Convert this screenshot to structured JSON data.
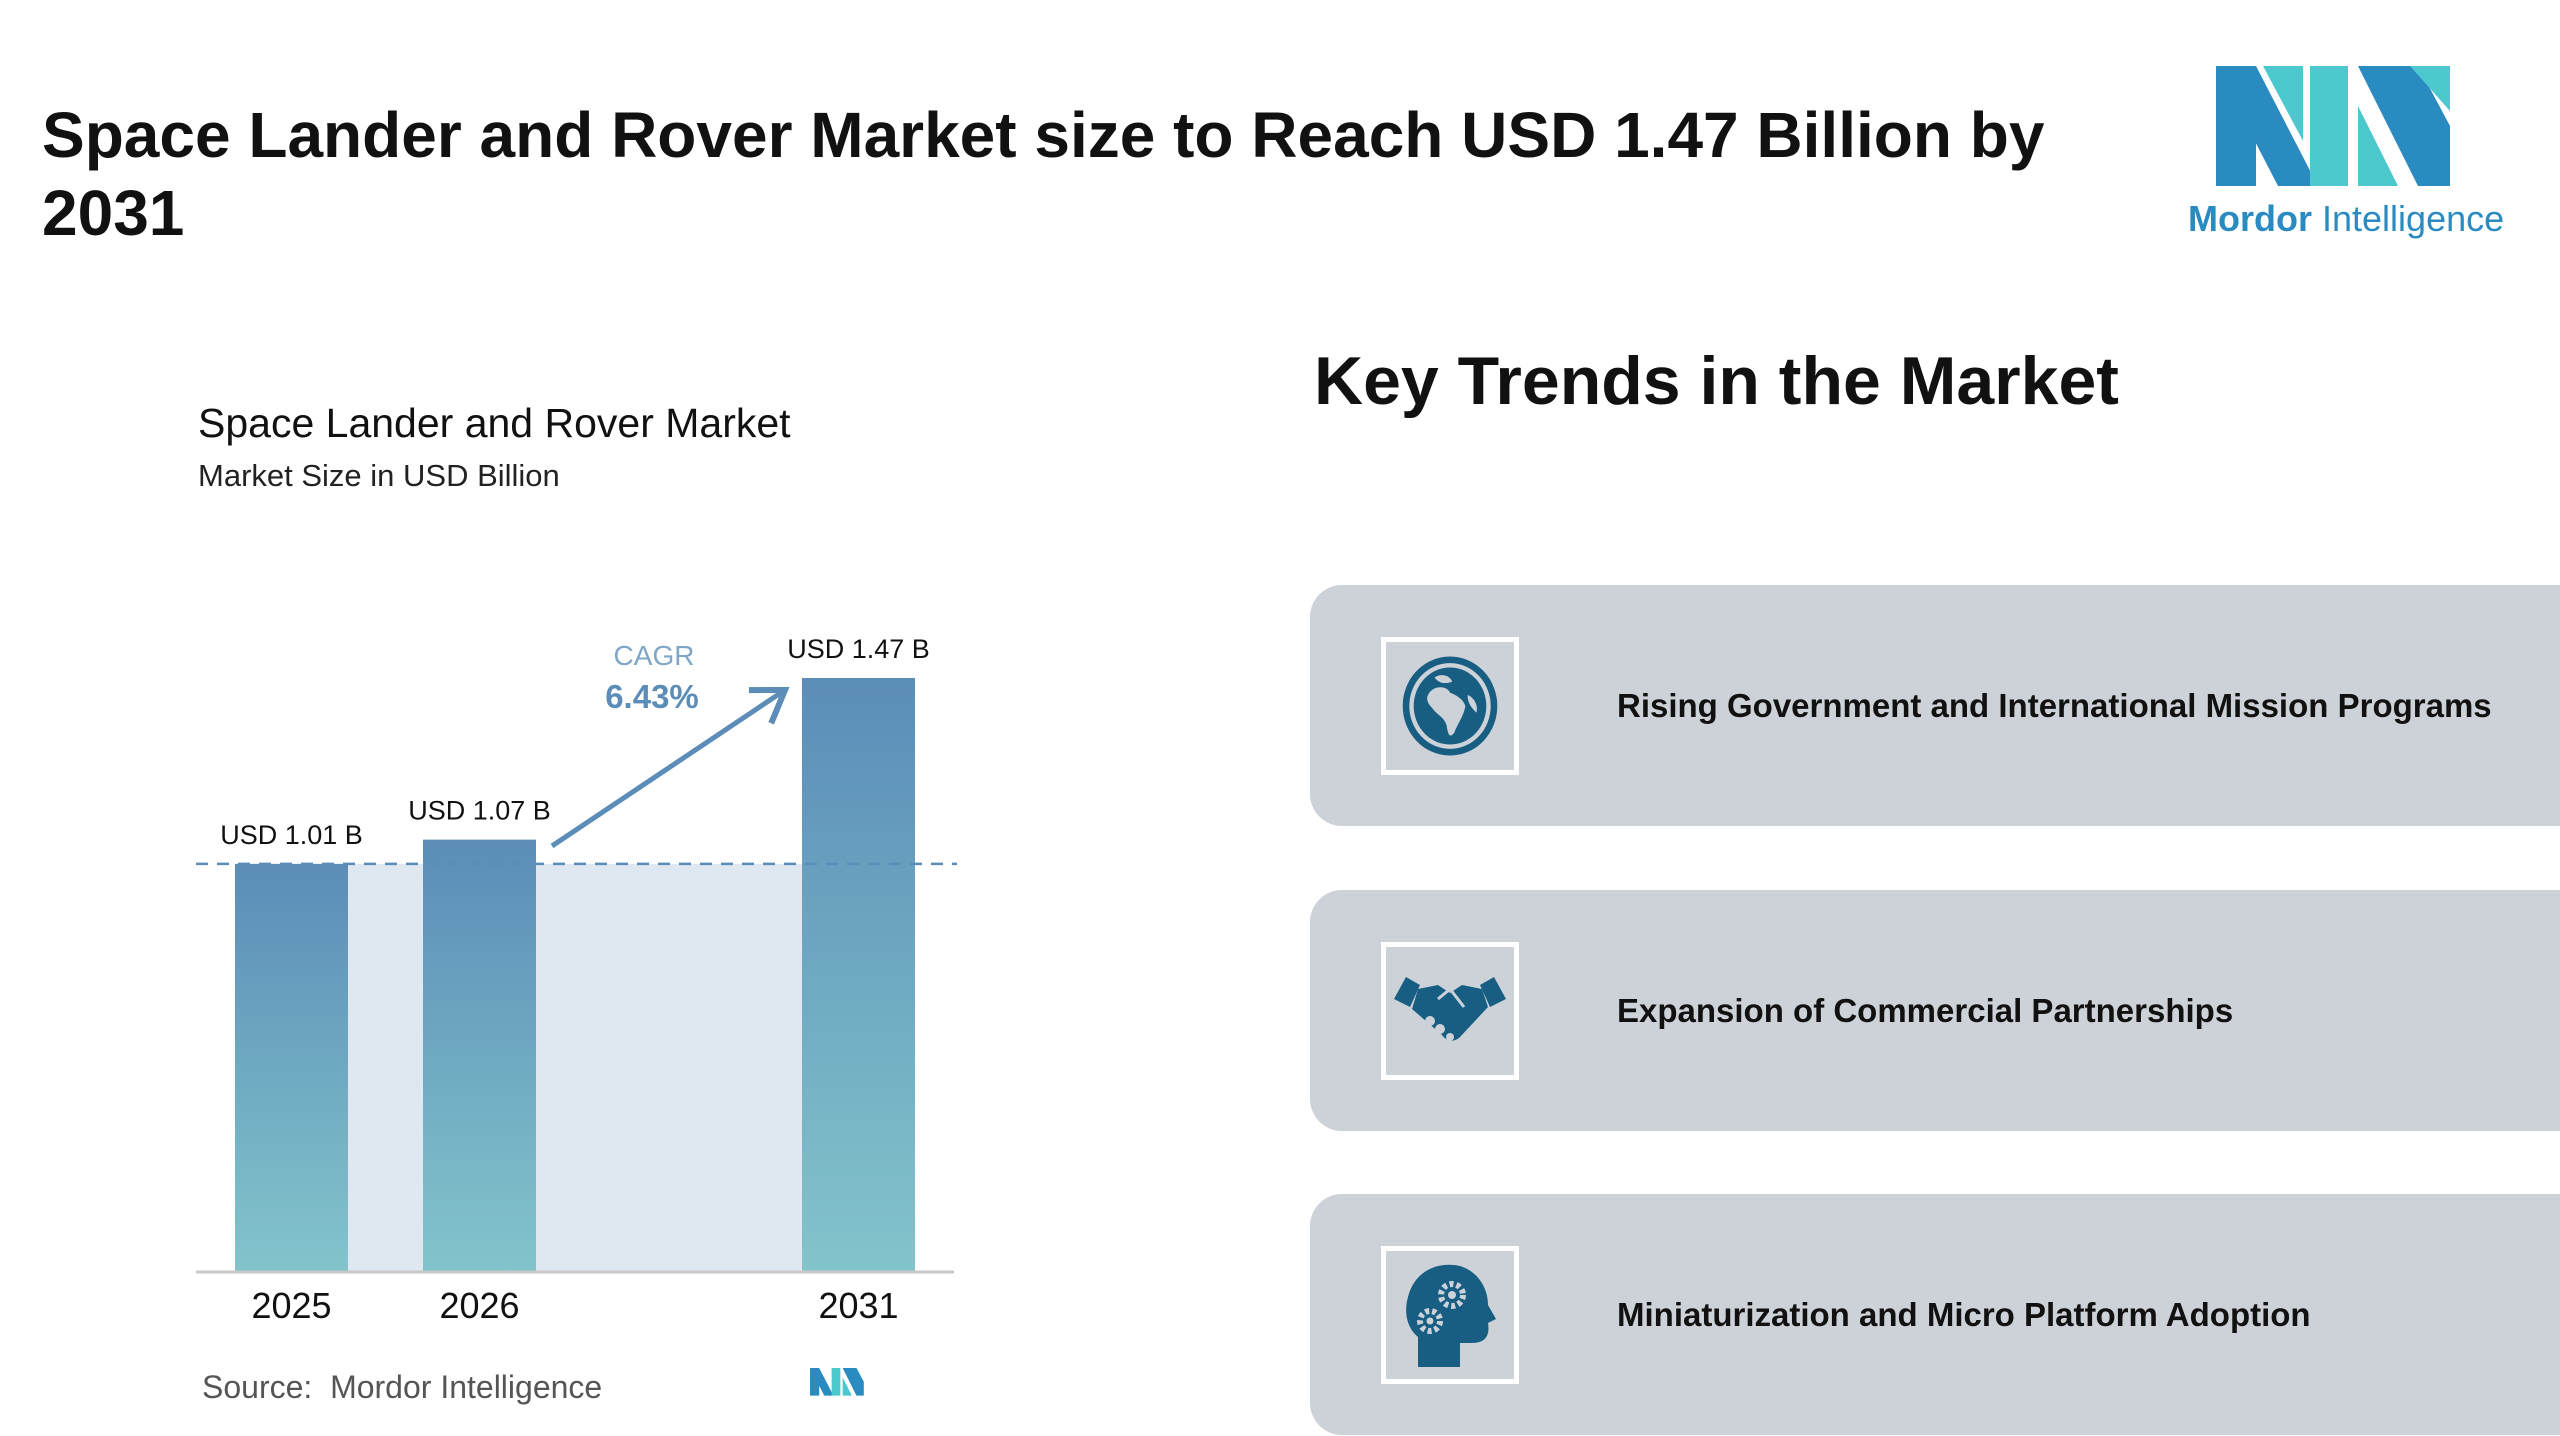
{
  "header": {
    "title": "Space Lander and Rover Market size to Reach USD 1.47 Billion by 2031",
    "logo": {
      "brand_bold": "Mordor",
      "brand_light": "Intelligence"
    }
  },
  "chart_data": {
    "type": "bar",
    "title": "Space Lander and Rover Market",
    "subtitle": "Market Size in USD Billion",
    "categories": [
      "2025",
      "2026",
      "2031"
    ],
    "values": [
      1.01,
      1.07,
      1.47
    ],
    "data_labels": [
      "USD 1.01 B",
      "USD 1.07 B",
      "USD 1.47 B"
    ],
    "ylim": [
      0,
      1.47
    ],
    "grid": false,
    "cagr_label": "CAGR",
    "cagr_value": "6.43%",
    "source": "Source:  Mordor Intelligence",
    "colors": {
      "bar_top": "#5b8db8",
      "bar_bottom": "#83c4cb",
      "area": "#dfe8f0",
      "cagr": "#5b8db8",
      "dash": "#5b8db8"
    }
  },
  "trends": {
    "title": "Key Trends in the Market",
    "items": [
      {
        "label": "Rising Government and International Mission Programs",
        "icon": "globe-icon"
      },
      {
        "label": "Expansion of Commercial Partnerships",
        "icon": "handshake-icon"
      },
      {
        "label": "Miniaturization and Micro Platform Adoption",
        "icon": "head-gears-icon"
      }
    ],
    "icon_color": "#175e82",
    "card_color": "#cdd2d9"
  }
}
